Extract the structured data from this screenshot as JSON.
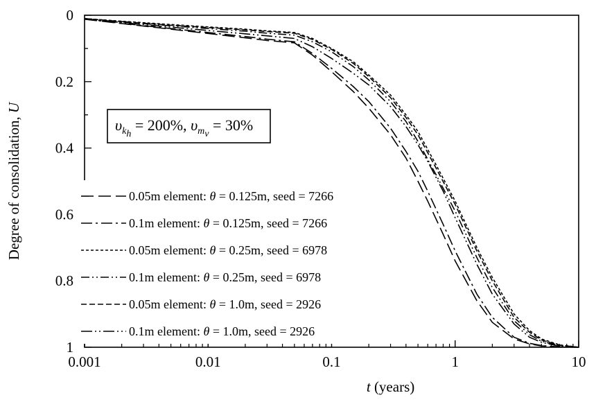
{
  "chart_data": {
    "type": "line",
    "title": "",
    "xlabel": {
      "italic": "t",
      "rest": " (years)"
    },
    "ylabel": {
      "text": "Degree of consolidation, ",
      "italic": "U"
    },
    "x_scale": "log",
    "xlim": [
      0.001,
      10
    ],
    "ylim": [
      0,
      1
    ],
    "y_inverted": true,
    "grid": false,
    "legend_position": "center-left",
    "x_tick_labels": [
      "0.001",
      "0.01",
      "0.1",
      "1",
      "10"
    ],
    "y_tick_labels": [
      "0",
      "0.2",
      "0.4",
      "0.6",
      "0.8",
      "1"
    ],
    "annotation": {
      "v1": "υ",
      "sub1": "k",
      "sub1sub": "h",
      "mid": " = 200%, ",
      "v2": "υ",
      "sub2": "m",
      "sub2sub": "v",
      "end": " = 30%"
    },
    "series": [
      {
        "name": {
          "a": "0.05m element: ",
          "theta": "θ",
          "b": " = 0.125m, seed = 7266"
        },
        "dash": "18,7",
        "x": [
          0.001,
          0.002,
          0.005,
          0.01,
          0.02,
          0.03,
          0.05,
          0.07,
          0.1,
          0.15,
          0.2,
          0.3,
          0.4,
          0.5,
          0.6,
          0.8,
          1,
          1.5,
          2,
          3,
          4,
          5,
          7,
          10
        ],
        "y": [
          0.012,
          0.025,
          0.042,
          0.055,
          0.068,
          0.076,
          0.083,
          0.12,
          0.17,
          0.23,
          0.28,
          0.36,
          0.43,
          0.5,
          0.56,
          0.66,
          0.74,
          0.86,
          0.925,
          0.975,
          0.99,
          0.996,
          0.999,
          1.0
        ]
      },
      {
        "name": {
          "a": "0.1m element: ",
          "theta": "θ",
          "b": " = 0.125m, seed = 7266"
        },
        "dash": "16,5,3,5",
        "x": [
          0.001,
          0.002,
          0.005,
          0.01,
          0.02,
          0.03,
          0.05,
          0.07,
          0.1,
          0.15,
          0.2,
          0.3,
          0.4,
          0.5,
          0.6,
          0.8,
          1,
          1.5,
          2,
          3,
          4,
          5,
          7,
          10
        ],
        "y": [
          0.012,
          0.024,
          0.04,
          0.052,
          0.064,
          0.072,
          0.08,
          0.115,
          0.16,
          0.215,
          0.26,
          0.34,
          0.41,
          0.47,
          0.53,
          0.63,
          0.71,
          0.84,
          0.91,
          0.97,
          0.988,
          0.995,
          0.999,
          1.0
        ]
      },
      {
        "name": {
          "a": "0.05m element: ",
          "theta": "θ",
          "b": " = 0.25m, seed = 6978"
        },
        "dash": "4,3",
        "x": [
          0.001,
          0.002,
          0.005,
          0.01,
          0.02,
          0.03,
          0.05,
          0.07,
          0.1,
          0.15,
          0.2,
          0.3,
          0.4,
          0.5,
          0.7,
          1,
          1.5,
          2,
          3,
          4,
          5,
          7,
          10
        ],
        "y": [
          0.01,
          0.018,
          0.028,
          0.035,
          0.042,
          0.047,
          0.052,
          0.07,
          0.1,
          0.14,
          0.18,
          0.24,
          0.3,
          0.35,
          0.45,
          0.56,
          0.7,
          0.79,
          0.9,
          0.95,
          0.975,
          0.993,
          1.0
        ]
      },
      {
        "name": {
          "a": "0.1m element: ",
          "theta": "θ",
          "b": " = 0.25m, seed = 6978"
        },
        "dash": "12,4,2,4,2,4",
        "x": [
          0.001,
          0.002,
          0.005,
          0.01,
          0.02,
          0.03,
          0.05,
          0.07,
          0.1,
          0.15,
          0.2,
          0.3,
          0.4,
          0.5,
          0.7,
          1,
          1.5,
          2,
          3,
          4,
          5,
          7,
          10
        ],
        "y": [
          0.011,
          0.02,
          0.032,
          0.04,
          0.048,
          0.054,
          0.06,
          0.08,
          0.11,
          0.155,
          0.195,
          0.26,
          0.32,
          0.38,
          0.48,
          0.59,
          0.73,
          0.82,
          0.92,
          0.962,
          0.982,
          0.995,
          1.0
        ]
      },
      {
        "name": {
          "a": "0.05m element: ",
          "theta": "θ",
          "b": " = 1.0m, seed = 2926"
        },
        "dash": "8,4",
        "x": [
          0.001,
          0.002,
          0.005,
          0.01,
          0.02,
          0.03,
          0.05,
          0.07,
          0.1,
          0.15,
          0.2,
          0.3,
          0.4,
          0.5,
          0.7,
          1,
          1.5,
          2,
          3,
          4,
          5,
          7,
          10
        ],
        "y": [
          0.01,
          0.019,
          0.03,
          0.037,
          0.044,
          0.049,
          0.054,
          0.073,
          0.103,
          0.145,
          0.185,
          0.248,
          0.308,
          0.36,
          0.46,
          0.57,
          0.71,
          0.8,
          0.91,
          0.955,
          0.978,
          0.994,
          1.0
        ]
      },
      {
        "name": {
          "a": "0.1m element: ",
          "theta": "θ",
          "b": " = 1.0m, seed = 2926"
        },
        "dash": "16,4,2,4,2,4",
        "x": [
          0.001,
          0.002,
          0.005,
          0.01,
          0.02,
          0.03,
          0.05,
          0.07,
          0.1,
          0.15,
          0.2,
          0.3,
          0.4,
          0.5,
          0.6,
          0.8,
          1,
          1.5,
          2,
          3,
          4,
          5,
          7,
          10
        ],
        "y": [
          0.012,
          0.022,
          0.036,
          0.046,
          0.056,
          0.062,
          0.07,
          0.095,
          0.13,
          0.175,
          0.21,
          0.275,
          0.335,
          0.39,
          0.44,
          0.53,
          0.61,
          0.75,
          0.84,
          0.93,
          0.97,
          0.985,
          0.997,
          1.0
        ]
      }
    ]
  }
}
